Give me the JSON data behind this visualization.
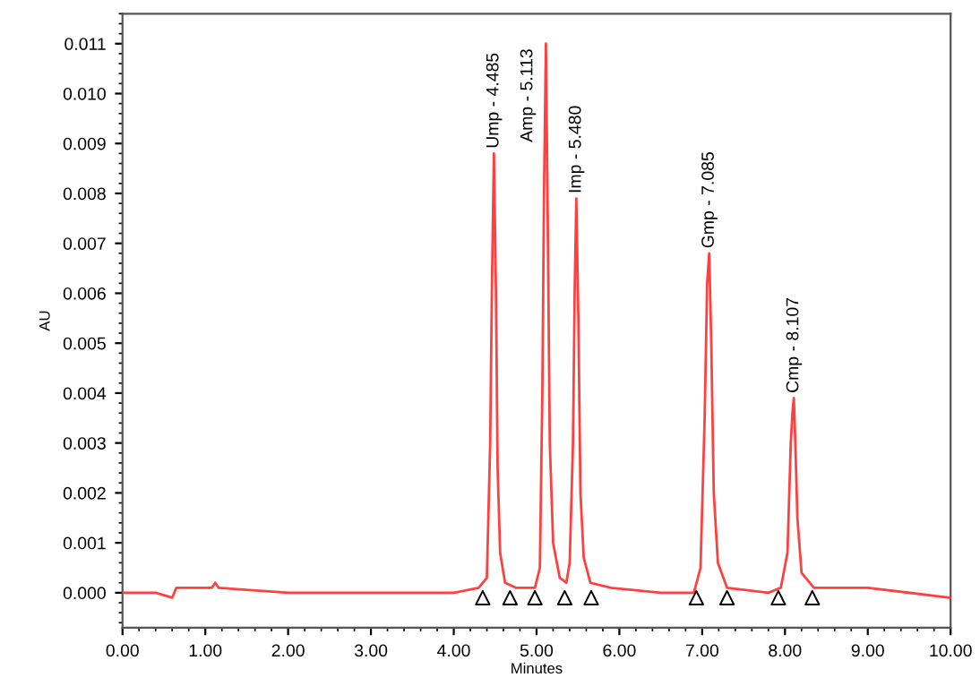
{
  "chart_data": {
    "type": "line",
    "xlabel": "Minutes",
    "ylabel": "AU",
    "xlim": [
      0,
      10
    ],
    "ylim": [
      -0.0007,
      0.0116
    ],
    "xticks": [
      {
        "value": 0,
        "label": "0.00"
      },
      {
        "value": 1,
        "label": "1.00"
      },
      {
        "value": 2,
        "label": "2.00"
      },
      {
        "value": 3,
        "label": "3.00"
      },
      {
        "value": 4,
        "label": "4.00"
      },
      {
        "value": 5,
        "label": "5.00"
      },
      {
        "value": 6,
        "label": "6.00"
      },
      {
        "value": 7,
        "label": "7.00"
      },
      {
        "value": 8,
        "label": "8.00"
      },
      {
        "value": 9,
        "label": "9.00"
      },
      {
        "value": 10,
        "label": "10.00"
      }
    ],
    "yticks": [
      {
        "value": 0,
        "label": "0.000"
      },
      {
        "value": 0.001,
        "label": "0.001"
      },
      {
        "value": 0.002,
        "label": "0.002"
      },
      {
        "value": 0.003,
        "label": "0.003"
      },
      {
        "value": 0.004,
        "label": "0.004"
      },
      {
        "value": 0.005,
        "label": "0.005"
      },
      {
        "value": 0.006,
        "label": "0.006"
      },
      {
        "value": 0.007,
        "label": "0.007"
      },
      {
        "value": 0.008,
        "label": "0.008"
      },
      {
        "value": 0.009,
        "label": "0.009"
      },
      {
        "value": 0.01,
        "label": "0.010"
      },
      {
        "value": 0.011,
        "label": "0.011"
      }
    ],
    "grid": false,
    "legend": false,
    "marker": "none",
    "line_style": "solid",
    "series": [
      {
        "color": "#ff4040",
        "x": [
          0,
          0.4,
          0.6,
          0.65,
          1.08,
          1.12,
          1.16,
          2.0,
          3.0,
          4.0,
          4.3,
          4.4,
          4.44,
          4.46,
          4.485,
          4.51,
          4.53,
          4.56,
          4.62,
          4.75,
          4.98,
          5.04,
          5.07,
          5.09,
          5.113,
          5.135,
          5.16,
          5.2,
          5.28,
          5.36,
          5.4,
          5.44,
          5.46,
          5.48,
          5.505,
          5.53,
          5.57,
          5.65,
          5.9,
          6.5,
          6.9,
          6.98,
          7.03,
          7.06,
          7.085,
          7.11,
          7.14,
          7.19,
          7.3,
          7.8,
          7.95,
          8.03,
          8.07,
          8.09,
          8.107,
          8.125,
          8.15,
          8.2,
          8.35,
          9.0,
          10.0
        ],
        "values": [
          0,
          0,
          -0.0001,
          0.0001,
          0.0001,
          0.0002,
          0.0001,
          0,
          0,
          0,
          0.0001,
          0.0003,
          0.003,
          0.006,
          0.0088,
          0.006,
          0.0025,
          0.0008,
          0.0002,
          0.0001,
          0.0001,
          0.0005,
          0.004,
          0.008,
          0.011,
          0.0075,
          0.003,
          0.001,
          0.0003,
          0.0002,
          0.0006,
          0.003,
          0.006,
          0.0079,
          0.0055,
          0.002,
          0.0007,
          0.0002,
          0.0001,
          0,
          0,
          0.0005,
          0.0035,
          0.0062,
          0.0068,
          0.005,
          0.002,
          0.0006,
          0.0001,
          0,
          0.0001,
          0.0008,
          0.003,
          0.0036,
          0.0039,
          0.003,
          0.0015,
          0.0004,
          0.0001,
          0.0001,
          -0.0001
        ]
      },
      {
        "type": "scatter",
        "marker": "triangle",
        "color": "#000000",
        "x": [
          4.35,
          4.68,
          4.98,
          5.34,
          5.66,
          6.93,
          7.3,
          7.92,
          8.33
        ],
        "values": [
          -0.0001,
          -0.0001,
          -0.0001,
          -0.0001,
          -0.0001,
          -0.0001,
          -0.0001,
          -0.0001,
          -0.0001
        ]
      }
    ],
    "annotations": [
      {
        "text": "Ump - 4.485",
        "x": 4.485,
        "y": 0.0088
      },
      {
        "text": "Amp - 5.113",
        "x": 5.113,
        "y": 0.011
      },
      {
        "text": "Imp - 5.480",
        "x": 5.48,
        "y": 0.0079
      },
      {
        "text": "Gmp - 7.085",
        "x": 7.085,
        "y": 0.0068
      },
      {
        "text": "Cmp - 8.107",
        "x": 8.107,
        "y": 0.0039
      }
    ]
  }
}
